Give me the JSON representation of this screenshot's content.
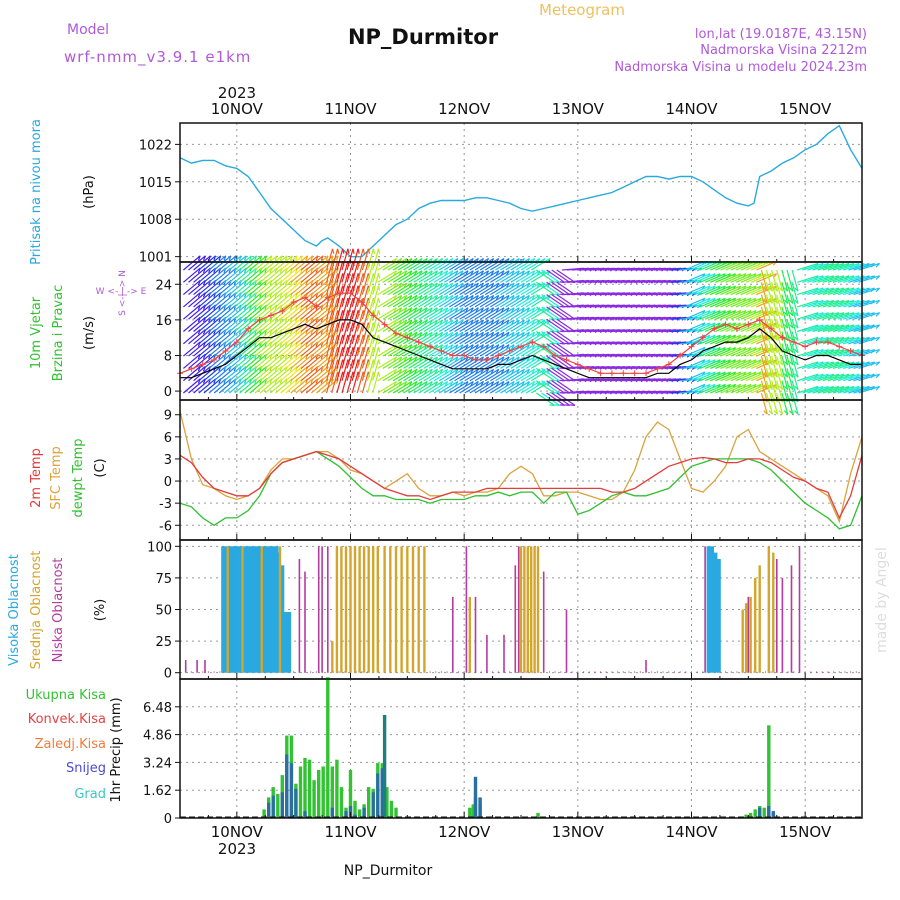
{
  "header": {
    "meteogram_label": "Meteogram",
    "station_title": "NP_Durmitor",
    "model_label": "Model",
    "model_name": "wrf-nmm_v3.9.1 e1km",
    "lonlat": "lon,lat (19.0187E, 43.15N)",
    "altitude": "Nadmorska Visina 2212m",
    "model_altitude": "Nadmorska Visina u modelu 2024.23m"
  },
  "footer": {
    "station_name": "NP_Durmitor",
    "watermark": "made by Angel"
  },
  "time_axis": {
    "year": "2023",
    "days": [
      "10NOV",
      "11NOV",
      "12NOV",
      "13NOV",
      "14NOV",
      "15NOV"
    ],
    "x_range_days": [
      -0.5,
      5.5
    ]
  },
  "colors": {
    "pressure": "#29a9e0",
    "wind_speed": "#000000",
    "gust": "#ee4444",
    "temp2m": "#e23c3c",
    "sfc_temp": "#dba33d",
    "dewpoint": "#30c030",
    "cloud_high": "#29a9e0",
    "cloud_mid": "#d4a52c",
    "cloud_low": "#b43c9e",
    "rain_total": "#33c233",
    "rain_conv": "#e34343",
    "freezing": "#f07c3c",
    "snow": "#4a4ad6",
    "hail": "#3cc6c6",
    "title_purple": "#b05ad8",
    "meteogram": "#f0c060"
  },
  "chart_data": [
    {
      "type": "line",
      "name": "pressure",
      "ylabel_lines": [
        "Pritisak na nivou mora",
        "(hPa)"
      ],
      "ylim": [
        1000,
        1026
      ],
      "yticks": [
        "1001",
        "1008",
        "1015",
        "1022"
      ],
      "ytick_values": [
        1001,
        1008,
        1015,
        1022
      ],
      "grid": true,
      "x": [
        -0.5,
        -0.4,
        -0.3,
        -0.2,
        -0.1,
        0,
        0.1,
        0.2,
        0.3,
        0.4,
        0.5,
        0.6,
        0.7,
        0.75,
        0.8,
        0.9,
        1,
        1.1,
        1.15,
        1.2,
        1.3,
        1.4,
        1.5,
        1.6,
        1.7,
        1.8,
        1.9,
        2,
        2.1,
        2.2,
        2.3,
        2.4,
        2.5,
        2.6,
        2.7,
        2.8,
        2.9,
        3,
        3.1,
        3.2,
        3.3,
        3.4,
        3.5,
        3.6,
        3.7,
        3.8,
        3.9,
        4,
        4.1,
        4.2,
        4.3,
        4.4,
        4.5,
        4.55,
        4.6,
        4.7,
        4.8,
        4.9,
        5,
        5.1,
        5.2,
        5.3,
        5.4,
        5.5
      ],
      "series": [
        {
          "values": [
            1019.5,
            1018.5,
            1019,
            1019,
            1018,
            1017.5,
            1016,
            1013,
            1010,
            1008,
            1006,
            1004,
            1003,
            1004,
            1004.5,
            1003,
            1001,
            1001,
            1002,
            1003,
            1005,
            1007,
            1008,
            1010,
            1011,
            1011.5,
            1011.5,
            1011.5,
            1012,
            1012,
            1011.5,
            1011,
            1010,
            1009.5,
            1010,
            1010.5,
            1011,
            1011.5,
            1012,
            1012.5,
            1013,
            1014,
            1015,
            1016,
            1016,
            1015.5,
            1016,
            1016,
            1015,
            1013.5,
            1012,
            1011,
            1010.5,
            1011,
            1016,
            1017,
            1018.5,
            1019.5,
            1021,
            1022,
            1024,
            1025.5,
            1021,
            1017.5
          ]
        }
      ]
    },
    {
      "type": "line",
      "name": "wind",
      "ylabel_lines": [
        "10m Vjetar",
        "Brzina i Pravac",
        "(m/s)"
      ],
      "compass_lines": [
        "W <- | -> E",
        "S <-| -> N"
      ],
      "ylim": [
        -2,
        29
      ],
      "yticks": [
        "0",
        "8",
        "16",
        "24"
      ],
      "ytick_values": [
        0,
        8,
        16,
        24
      ],
      "grid": true,
      "x": [
        -0.5,
        -0.4,
        -0.3,
        -0.2,
        -0.1,
        0,
        0.1,
        0.2,
        0.3,
        0.4,
        0.5,
        0.6,
        0.7,
        0.8,
        0.9,
        1,
        1.1,
        1.2,
        1.3,
        1.4,
        1.5,
        1.6,
        1.7,
        1.8,
        1.9,
        2,
        2.1,
        2.2,
        2.3,
        2.4,
        2.5,
        2.6,
        2.7,
        2.8,
        2.9,
        3,
        3.1,
        3.2,
        3.3,
        3.4,
        3.5,
        3.6,
        3.7,
        3.8,
        3.9,
        4,
        4.1,
        4.2,
        4.3,
        4.4,
        4.5,
        4.6,
        4.7,
        4.8,
        4.9,
        5,
        5.1,
        5.2,
        5.3,
        5.4,
        5.5
      ],
      "series": [
        {
          "name": "speed",
          "values": [
            3,
            3,
            4,
            5,
            6,
            8,
            10,
            12,
            12,
            13,
            14,
            15,
            14,
            15,
            16,
            16,
            15,
            12,
            11,
            10,
            9,
            8,
            7,
            6,
            5,
            5,
            5,
            5,
            6,
            6,
            7,
            8,
            7,
            6,
            5,
            4,
            3,
            3,
            3,
            3,
            3,
            3,
            4,
            4,
            6,
            7,
            9,
            10,
            11,
            11,
            12,
            14,
            12,
            9,
            8,
            7,
            8,
            8,
            7,
            6,
            6
          ]
        },
        {
          "name": "gust",
          "values": [
            4,
            5,
            6,
            7,
            9,
            11,
            14,
            16,
            17,
            18,
            20,
            21,
            19,
            21,
            22,
            22,
            20,
            17,
            15,
            13,
            12,
            11,
            10,
            9,
            8,
            8,
            7,
            7,
            8,
            9,
            10,
            11,
            10,
            8,
            7,
            6,
            5,
            4,
            4,
            4,
            4,
            4,
            5,
            6,
            8,
            10,
            12,
            14,
            15,
            14,
            15,
            16,
            14,
            12,
            11,
            10,
            11,
            11,
            10,
            9,
            8
          ]
        }
      ]
    },
    {
      "type": "line",
      "name": "temperature",
      "ylabel_lines": [
        "2m Temp",
        "SFC Temp",
        "dewpt Temp",
        "(C)"
      ],
      "ylim": [
        -8,
        11
      ],
      "yticks": [
        "-6",
        "-3",
        "0",
        "3",
        "6",
        "9"
      ],
      "ytick_values": [
        -6,
        -3,
        0,
        3,
        6,
        9
      ],
      "grid": true,
      "x": [
        -0.5,
        -0.4,
        -0.3,
        -0.2,
        -0.1,
        0,
        0.1,
        0.2,
        0.3,
        0.4,
        0.5,
        0.6,
        0.7,
        0.8,
        0.9,
        1,
        1.1,
        1.2,
        1.3,
        1.4,
        1.5,
        1.6,
        1.7,
        1.8,
        1.9,
        2,
        2.1,
        2.2,
        2.3,
        2.4,
        2.5,
        2.6,
        2.7,
        2.8,
        2.9,
        3,
        3.1,
        3.2,
        3.3,
        3.4,
        3.5,
        3.6,
        3.7,
        3.8,
        3.9,
        4,
        4.1,
        4.2,
        4.3,
        4.4,
        4.5,
        4.6,
        4.7,
        4.8,
        4.9,
        5,
        5.1,
        5.2,
        5.3,
        5.4,
        5.5
      ],
      "series": [
        {
          "name": "2m",
          "values": [
            3.5,
            2.5,
            0.5,
            -1,
            -1.5,
            -2,
            -2,
            -1,
            1,
            2.5,
            3,
            3.5,
            4,
            3.5,
            3,
            2,
            1,
            0,
            -1,
            -1.5,
            -2,
            -2,
            -2.5,
            -2,
            -1.5,
            -1.5,
            -1.5,
            -1,
            -1,
            -1,
            -1,
            -1,
            -1,
            -1,
            -1,
            -1,
            -1,
            -1,
            -1.5,
            -1.5,
            -1,
            0,
            1,
            2,
            2.5,
            3,
            3.2,
            3,
            2.5,
            2.5,
            3,
            3,
            2.5,
            1.5,
            0.5,
            0,
            -1,
            -1.5,
            -5,
            -2,
            3.5
          ]
        },
        {
          "name": "sfc",
          "values": [
            9.5,
            3,
            -0.5,
            -1,
            -2,
            -2.5,
            -2,
            -1,
            1.5,
            3,
            3,
            3.5,
            4,
            4,
            3,
            1.5,
            1,
            0,
            -1,
            0,
            1,
            -1,
            -2,
            -2,
            -1.5,
            -2,
            -1.5,
            -1.5,
            -1,
            1,
            2,
            1,
            -2,
            -2,
            -1.5,
            -1.5,
            -2,
            -2.5,
            -2.5,
            -1.5,
            1.5,
            6,
            8,
            7,
            3,
            -1,
            -1.5,
            0,
            2,
            6,
            7,
            4,
            3,
            2,
            1,
            0,
            -1,
            -2,
            -5.5,
            1,
            6
          ]
        },
        {
          "name": "dewpt",
          "values": [
            -3,
            -3.5,
            -5,
            -6,
            -5,
            -5,
            -4,
            -2,
            1,
            2.5,
            3,
            3.5,
            4,
            3,
            2,
            0.5,
            -1,
            -2,
            -2,
            -2.5,
            -2.5,
            -2.5,
            -3,
            -2.5,
            -2.5,
            -2.5,
            -2,
            -2,
            -1.5,
            -2,
            -1.5,
            -1.5,
            -3,
            -1.5,
            -1.5,
            -4.5,
            -4,
            -3,
            -2,
            -1.5,
            -2,
            -2,
            -1.5,
            -1,
            0.5,
            2,
            2.5,
            3,
            3,
            3,
            3,
            2.5,
            1.5,
            0,
            -1.5,
            -3,
            -4,
            -5,
            -6.5,
            -6,
            -2
          ]
        }
      ]
    },
    {
      "type": "bar",
      "name": "cloud_cover",
      "ylabel_lines": [
        "Visoka Oblacnost",
        "Srednja Oblacnost",
        "Niska Oblacnost",
        "(%)"
      ],
      "ylim": [
        -5,
        105
      ],
      "yticks": [
        "0",
        "25",
        "50",
        "75",
        "100"
      ],
      "ytick_values": [
        0,
        25,
        50,
        75,
        100
      ],
      "grid": true,
      "series": [
        {
          "name": "high",
          "x": [
            -0.12,
            -0.09,
            -0.07,
            -0.05,
            -0.02,
            0,
            0.03,
            0.05,
            0.08,
            0.1,
            0.12,
            0.15,
            0.17,
            0.2,
            0.22,
            0.25,
            0.27,
            0.3,
            0.32,
            0.35,
            0.37,
            0.4,
            0.43,
            0.46,
            4.15,
            4.18,
            4.21,
            4.24
          ],
          "values": [
            100,
            100,
            100,
            100,
            100,
            100,
            100,
            100,
            100,
            100,
            100,
            100,
            100,
            100,
            100,
            100,
            100,
            100,
            100,
            100,
            95,
            85,
            48,
            48,
            100,
            100,
            95,
            90
          ]
        },
        {
          "name": "mid",
          "x": [
            -0.08,
            0.05,
            0.22,
            0.38,
            0.84,
            0.88,
            0.92,
            0.96,
            1.0,
            1.04,
            1.08,
            1.12,
            1.16,
            1.2,
            1.24,
            1.3,
            1.35,
            1.4,
            1.45,
            1.5,
            1.55,
            1.6,
            1.65,
            2.05,
            2.5,
            2.53,
            2.56,
            2.59,
            2.62,
            2.65,
            4.45,
            4.48,
            4.52,
            4.56,
            4.6,
            4.68,
            4.72
          ],
          "values": [
            100,
            100,
            100,
            100,
            25,
            100,
            100,
            100,
            100,
            100,
            100,
            100,
            100,
            100,
            100,
            100,
            100,
            100,
            100,
            100,
            100,
            100,
            100,
            60,
            100,
            100,
            100,
            100,
            100,
            100,
            50,
            55,
            60,
            75,
            85,
            100,
            95
          ]
        },
        {
          "name": "low",
          "x": [
            -0.45,
            -0.35,
            -0.28,
            0.55,
            0.6,
            0.72,
            0.75,
            0.8,
            1.9,
            2.02,
            2.1,
            2.2,
            2.35,
            2.45,
            2.48,
            2.7,
            2.9,
            3.6,
            4.12,
            4.5,
            4.75,
            4.8,
            4.88,
            4.95
          ],
          "values": [
            10,
            10,
            10,
            90,
            80,
            100,
            100,
            100,
            60,
            100,
            60,
            30,
            30,
            85,
            100,
            80,
            50,
            10,
            100,
            60,
            90,
            75,
            85,
            100
          ]
        }
      ]
    },
    {
      "type": "bar",
      "name": "precipitation",
      "ylabel_lines": [
        "1hr Precip (mm)"
      ],
      "legend": [
        "Ukupna Kisa",
        "Konvek.Kisa",
        "Zaledj.Kisa",
        "Snijeg",
        "Grad"
      ],
      "ylim": [
        0,
        8.1
      ],
      "yticks": [
        "0",
        "1.62",
        "3.24",
        "4.86",
        "6.48"
      ],
      "ytick_values": [
        0,
        1.62,
        3.24,
        4.86,
        6.48
      ],
      "grid": true,
      "series": [
        {
          "name": "total",
          "x": [
            0.24,
            0.28,
            0.32,
            0.36,
            0.4,
            0.44,
            0.48,
            0.52,
            0.56,
            0.6,
            0.64,
            0.68,
            0.72,
            0.76,
            0.8,
            0.84,
            0.88,
            0.92,
            0.96,
            1.0,
            1.04,
            1.08,
            1.12,
            1.16,
            1.2,
            1.24,
            1.28,
            1.32,
            1.36,
            1.4,
            2.05,
            2.08,
            2.1,
            2.14,
            2.65,
            4.48,
            4.52,
            4.56,
            4.6,
            4.64,
            4.68,
            4.72
          ],
          "values": [
            0.5,
            1.2,
            1.8,
            1.4,
            2.5,
            4.8,
            4.8,
            2,
            3,
            3.5,
            3.4,
            2.2,
            2.8,
            3,
            8.2,
            3,
            3.4,
            1.8,
            0.6,
            2.8,
            1,
            0.5,
            0.8,
            1.8,
            1.7,
            3.2,
            3.2,
            1.8,
            1,
            0.6,
            0.6,
            0.8,
            1.2,
            0.8,
            0.3,
            0.2,
            0.3,
            0.5,
            0.7,
            0.6,
            5.4,
            0.3
          ]
        },
        {
          "name": "snow",
          "x": [
            0.28,
            0.32,
            0.4,
            0.44,
            0.48,
            0.52,
            0.6,
            0.84,
            0.96,
            1.0,
            1.04,
            1.12,
            1.2,
            1.24,
            1.28,
            2.1,
            2.14,
            4.6,
            4.68,
            4.72
          ],
          "values": [
            0.9,
            1.3,
            1.5,
            3.7,
            3.2,
            1.7,
            0.4,
            0.6,
            0.4,
            0.7,
            0.2,
            0.6,
            1.5,
            2.6,
            2.9,
            2.4,
            1.2,
            0.6,
            0.7,
            0.4
          ]
        },
        {
          "name": "hail",
          "x": [
            1.3
          ],
          "values": [
            6
          ]
        }
      ]
    }
  ]
}
